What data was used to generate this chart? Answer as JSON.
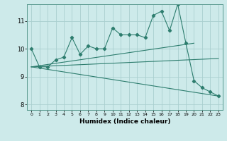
{
  "title": "",
  "xlabel": "Humidex (Indice chaleur)",
  "ylabel": "",
  "bg_color": "#cdeaea",
  "grid_color": "#aacfcf",
  "line_color": "#2d7d6e",
  "xlim": [
    -0.5,
    23.5
  ],
  "ylim": [
    7.8,
    11.6
  ],
  "yticks": [
    8,
    9,
    10,
    11
  ],
  "xticks": [
    0,
    1,
    2,
    3,
    4,
    5,
    6,
    7,
    8,
    9,
    10,
    11,
    12,
    13,
    14,
    15,
    16,
    17,
    18,
    19,
    20,
    21,
    22,
    23
  ],
  "series1_x": [
    0,
    1,
    2,
    3,
    4,
    5,
    6,
    7,
    8,
    9,
    10,
    11,
    12,
    13,
    14,
    15,
    16,
    17,
    18,
    19,
    20,
    21,
    22,
    23
  ],
  "series1_y": [
    10.0,
    9.35,
    9.35,
    9.6,
    9.7,
    10.4,
    9.8,
    10.1,
    10.0,
    10.0,
    10.75,
    10.5,
    10.5,
    10.5,
    10.4,
    11.2,
    11.35,
    10.65,
    11.6,
    10.2,
    8.85,
    8.6,
    8.45,
    8.3
  ],
  "series2_x": [
    0,
    20
  ],
  "series2_y": [
    9.35,
    10.2
  ],
  "series3_x": [
    0,
    23
  ],
  "series3_y": [
    9.35,
    8.3
  ],
  "series4_x": [
    0,
    23
  ],
  "series4_y": [
    9.35,
    9.65
  ]
}
